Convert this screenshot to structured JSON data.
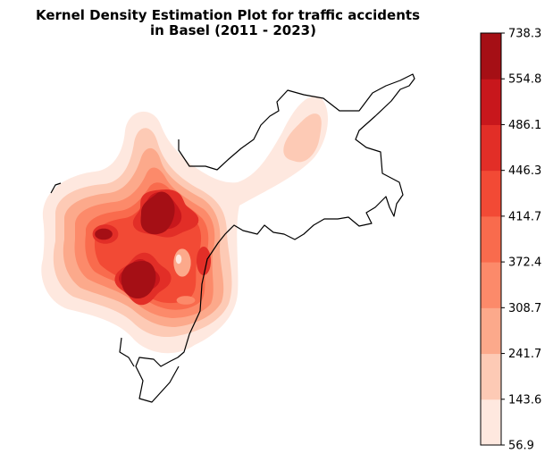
{
  "chart_data": {
    "type": "heatmap",
    "title_lines": [
      "Kernel Density Estimation Plot for traffic accidents",
      "in Basel (2011 - 2023)"
    ],
    "axes_visible": false,
    "colormap": "Reds",
    "colorbar": {
      "position": "right",
      "levels": [
        56.9,
        143.6,
        241.7,
        308.7,
        372.4,
        414.7,
        446.3,
        486.1,
        554.8,
        738.3
      ],
      "tick_labels": [
        "56.9",
        "143.6",
        "241.7",
        "308.7",
        "372.4",
        "414.7",
        "446.3",
        "486.1",
        "554.8",
        "738.3"
      ],
      "colors": [
        "#fee8df",
        "#fdcab5",
        "#fca98b",
        "#fc8a6a",
        "#f96b4d",
        "#f24a35",
        "#e22e27",
        "#c8171c",
        "#a50f15"
      ]
    },
    "hotspots_description": [
      {
        "name": "north-central cluster",
        "level": "738.3"
      },
      {
        "name": "south-central cluster",
        "level": "738.3"
      }
    ]
  }
}
